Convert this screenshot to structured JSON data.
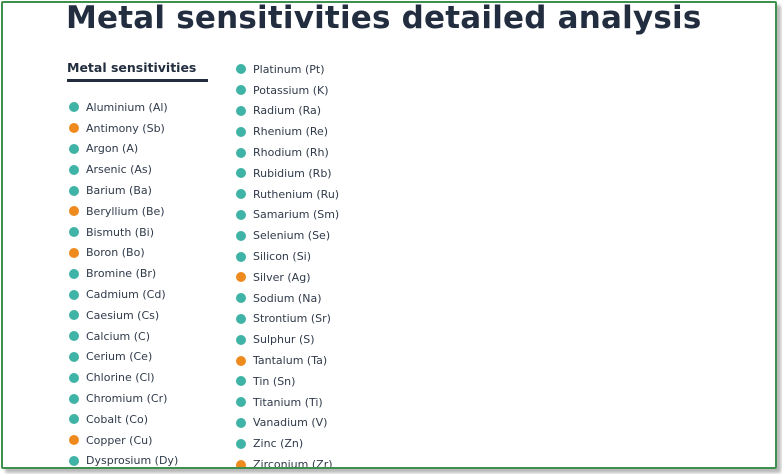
{
  "page": {
    "title": "Metal sensitivities detailed analysis",
    "section_heading": "Metal sensitivities"
  },
  "colors": {
    "teal": "#3fb3a5",
    "orange": "#ef8a1f",
    "heading": "#222e3f",
    "border": "#3f8f4f"
  },
  "metals_left": [
    {
      "label": "Aluminium (Al)",
      "status": "teal"
    },
    {
      "label": "Antimony (Sb)",
      "status": "orange"
    },
    {
      "label": "Argon (A)",
      "status": "teal"
    },
    {
      "label": "Arsenic (As)",
      "status": "teal"
    },
    {
      "label": "Barium (Ba)",
      "status": "teal"
    },
    {
      "label": "Beryllium (Be)",
      "status": "orange"
    },
    {
      "label": "Bismuth (Bi)",
      "status": "teal"
    },
    {
      "label": "Boron (Bo)",
      "status": "orange"
    },
    {
      "label": "Bromine (Br)",
      "status": "teal"
    },
    {
      "label": "Cadmium (Cd)",
      "status": "teal"
    },
    {
      "label": "Caesium (Cs)",
      "status": "teal"
    },
    {
      "label": "Calcium (C)",
      "status": "teal"
    },
    {
      "label": "Cerium (Ce)",
      "status": "teal"
    },
    {
      "label": "Chlorine (Cl)",
      "status": "teal"
    },
    {
      "label": "Chromium (Cr)",
      "status": "teal"
    },
    {
      "label": "Cobalt (Co)",
      "status": "teal"
    },
    {
      "label": "Copper (Cu)",
      "status": "orange"
    },
    {
      "label": "Dysprosium (Dy)",
      "status": "teal"
    }
  ],
  "metals_right": [
    {
      "label": "Platinum (Pt)",
      "status": "teal"
    },
    {
      "label": "Potassium (K)",
      "status": "teal"
    },
    {
      "label": "Radium (Ra)",
      "status": "teal"
    },
    {
      "label": "Rhenium (Re)",
      "status": "teal"
    },
    {
      "label": "Rhodium (Rh)",
      "status": "teal"
    },
    {
      "label": "Rubidium (Rb)",
      "status": "teal"
    },
    {
      "label": "Ruthenium (Ru)",
      "status": "teal"
    },
    {
      "label": "Samarium (Sm)",
      "status": "teal"
    },
    {
      "label": "Selenium (Se)",
      "status": "teal"
    },
    {
      "label": "Silicon (Si)",
      "status": "teal"
    },
    {
      "label": "Silver (Ag)",
      "status": "orange"
    },
    {
      "label": "Sodium (Na)",
      "status": "teal"
    },
    {
      "label": "Strontium (Sr)",
      "status": "teal"
    },
    {
      "label": "Sulphur (S)",
      "status": "teal"
    },
    {
      "label": "Tantalum (Ta)",
      "status": "orange"
    },
    {
      "label": "Tin (Sn)",
      "status": "teal"
    },
    {
      "label": "Titanium (Ti)",
      "status": "teal"
    },
    {
      "label": "Vanadium (V)",
      "status": "teal"
    },
    {
      "label": "Zinc (Zn)",
      "status": "teal"
    },
    {
      "label": "Zirconium (Zr)",
      "status": "orange"
    }
  ]
}
